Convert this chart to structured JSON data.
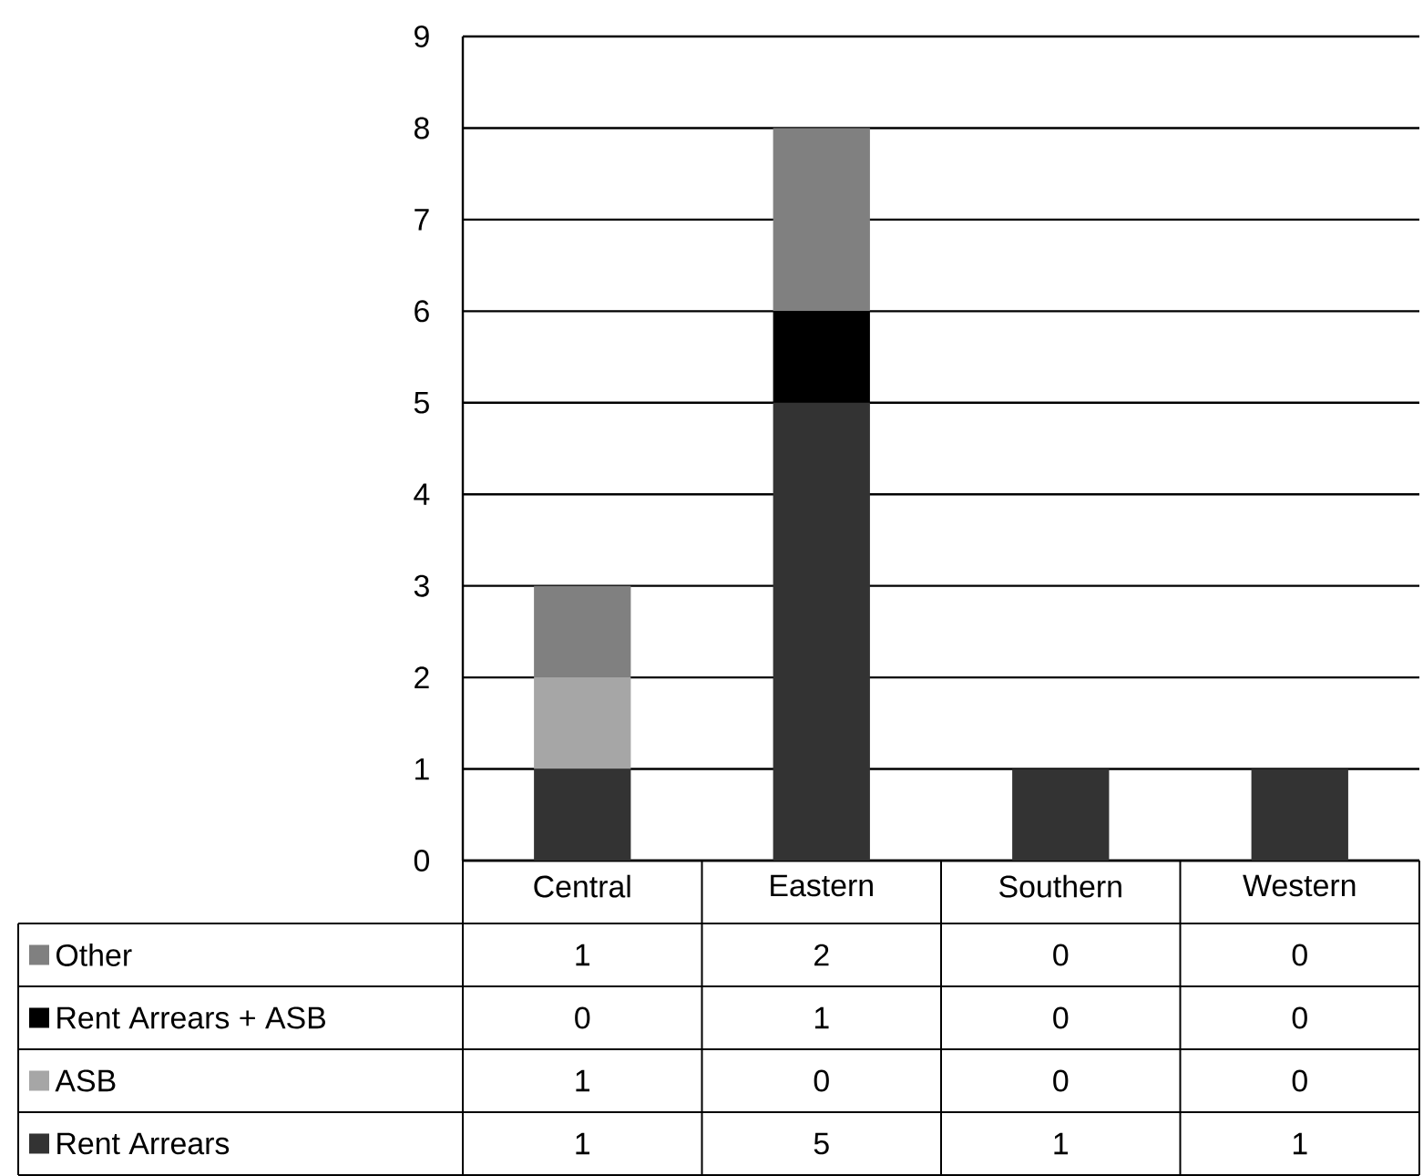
{
  "chart_data": {
    "type": "bar",
    "stacked": true,
    "categories": [
      "Central",
      "Eastern",
      "Southern",
      "Western"
    ],
    "series": [
      {
        "name": "Rent Arrears",
        "color": "#333333",
        "values": [
          1,
          5,
          1,
          1
        ]
      },
      {
        "name": "ASB",
        "color": "#a6a6a6",
        "values": [
          1,
          0,
          0,
          0
        ]
      },
      {
        "name": "Rent Arrears + ASB",
        "color": "#000000",
        "values": [
          0,
          1,
          0,
          0
        ]
      },
      {
        "name": "Other",
        "color": "#808080",
        "values": [
          1,
          2,
          0,
          0
        ]
      }
    ],
    "ylim": [
      0,
      9
    ],
    "yticks": [
      0,
      1,
      2,
      3,
      4,
      5,
      6,
      7,
      8,
      9
    ],
    "grid": "y",
    "legend": "bottom",
    "data_labels": true
  }
}
